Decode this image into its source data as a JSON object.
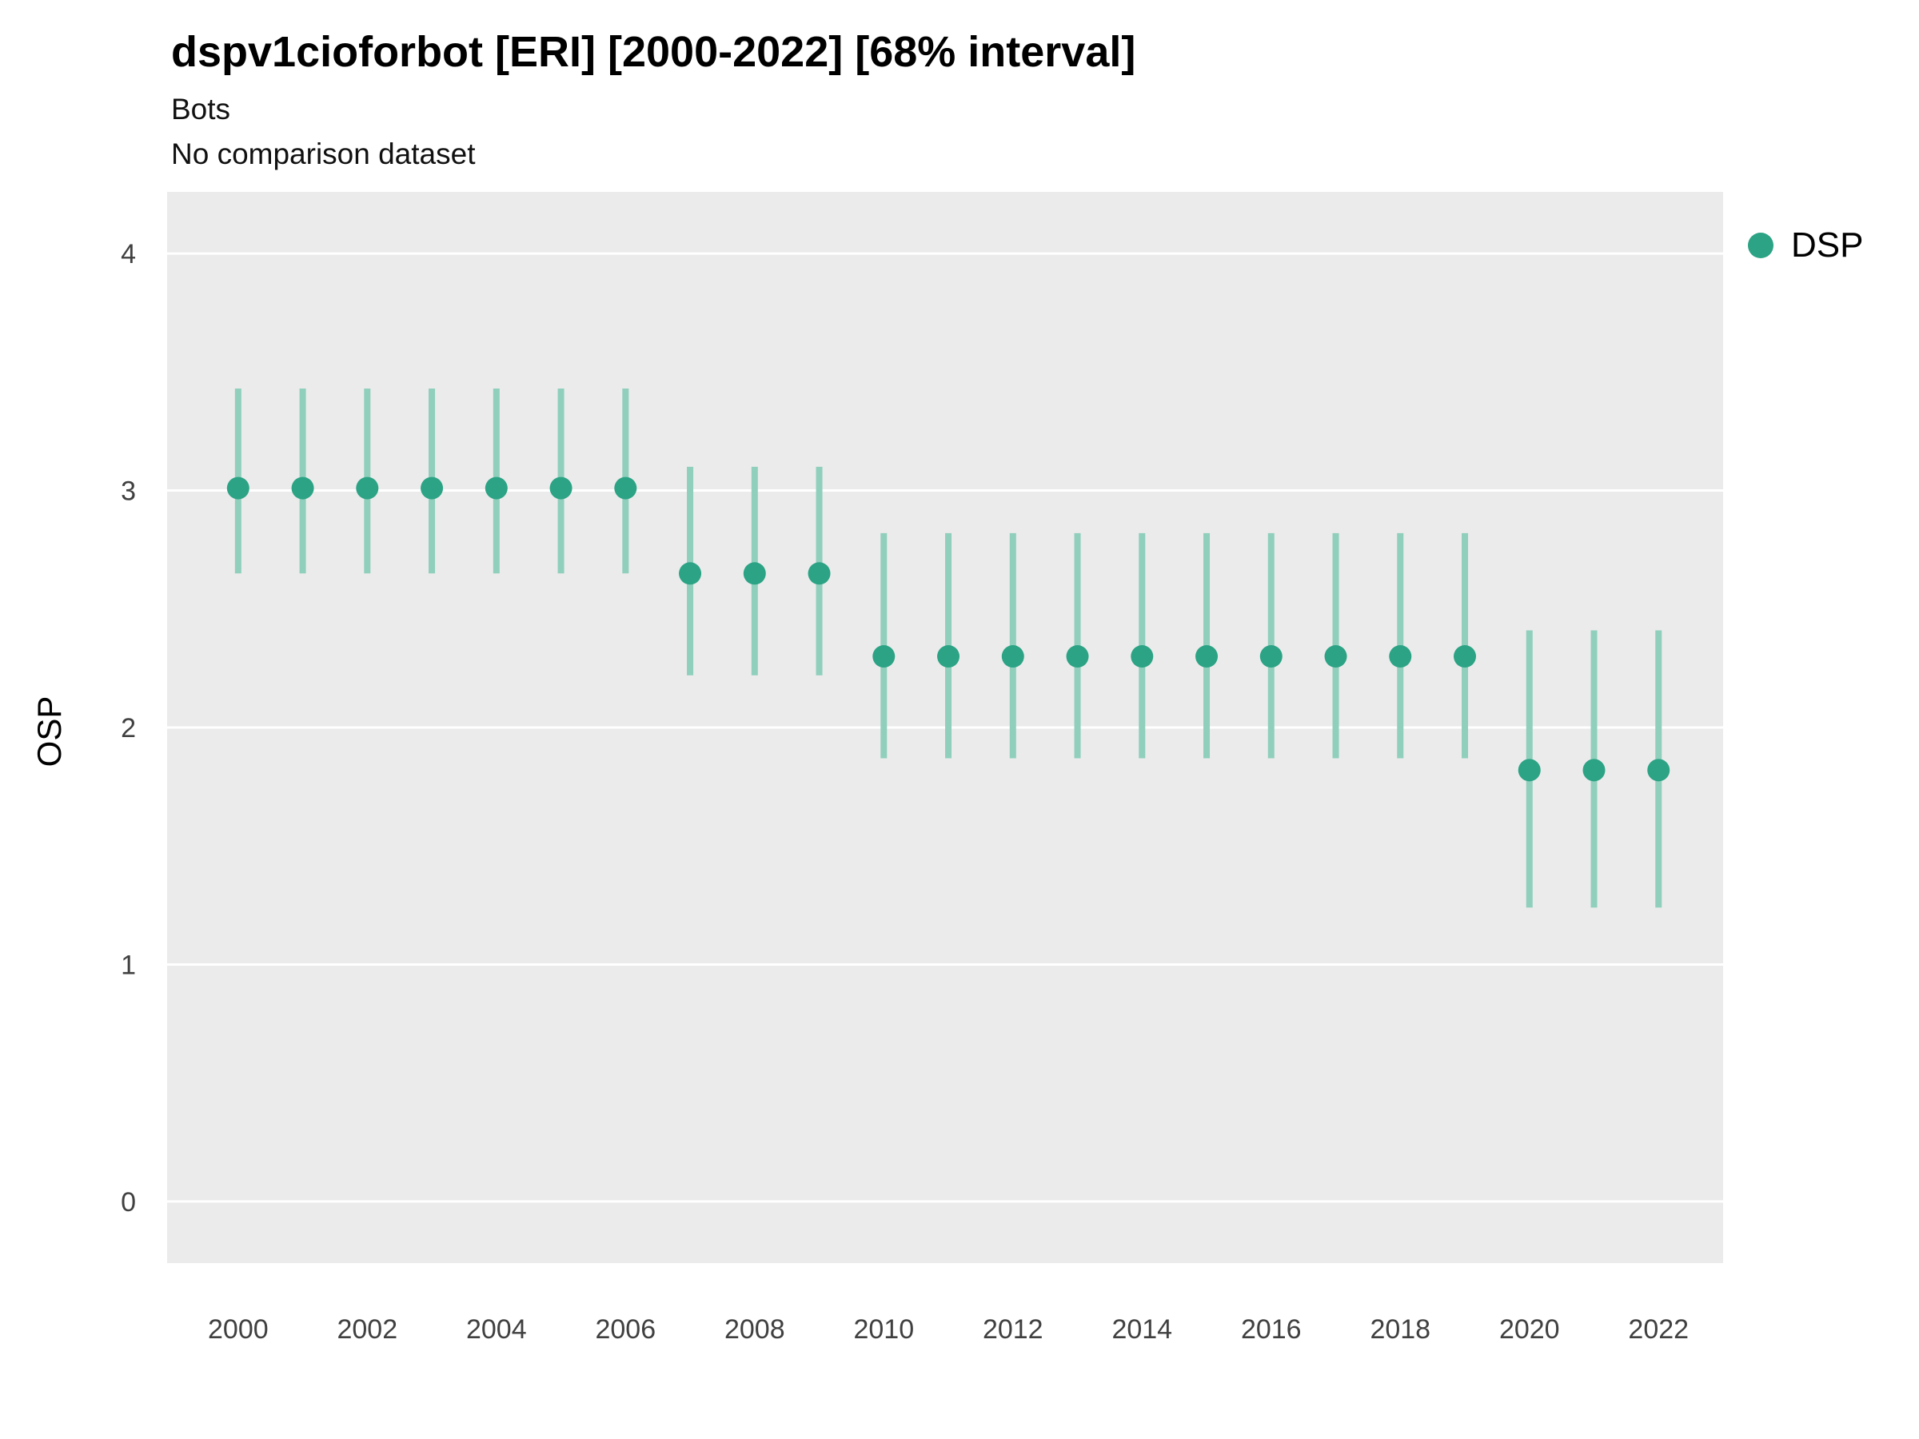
{
  "header": {
    "title": "dspv1cioforbot [ERI] [2000-2022] [68% interval]",
    "subtitle": "Bots",
    "note": "No comparison dataset"
  },
  "legend": {
    "label": "DSP"
  },
  "colors": {
    "panel_bg": "#ebebeb",
    "grid": "#ffffff",
    "tick_text": "#404040",
    "point": "#2ba384",
    "interval": "#8fcfbc"
  },
  "chart_data": {
    "type": "pointrange",
    "title": "dspv1cioforbot [ERI] [2000-2022] [68% interval]",
    "subtitle": "Bots",
    "note": "No comparison dataset",
    "xlabel": "",
    "ylabel": "OSP",
    "interval": "68%",
    "legend_position": "right",
    "grid": "horizontal-major",
    "xlim": [
      1998.9,
      2023.0
    ],
    "ylim": [
      -0.26,
      4.26
    ],
    "x_ticks": [
      2000,
      2002,
      2004,
      2006,
      2008,
      2010,
      2012,
      2014,
      2016,
      2018,
      2020,
      2022
    ],
    "y_ticks": [
      0,
      1,
      2,
      3,
      4
    ],
    "series": [
      {
        "name": "DSP",
        "color": "#2ba384",
        "interval_color": "#8fcfbc",
        "points": [
          {
            "x": 2000,
            "y": 3.01,
            "lo": 2.65,
            "hi": 3.43
          },
          {
            "x": 2001,
            "y": 3.01,
            "lo": 2.65,
            "hi": 3.43
          },
          {
            "x": 2002,
            "y": 3.01,
            "lo": 2.65,
            "hi": 3.43
          },
          {
            "x": 2003,
            "y": 3.01,
            "lo": 2.65,
            "hi": 3.43
          },
          {
            "x": 2004,
            "y": 3.01,
            "lo": 2.65,
            "hi": 3.43
          },
          {
            "x": 2005,
            "y": 3.01,
            "lo": 2.65,
            "hi": 3.43
          },
          {
            "x": 2006,
            "y": 3.01,
            "lo": 2.65,
            "hi": 3.43
          },
          {
            "x": 2007,
            "y": 2.65,
            "lo": 2.22,
            "hi": 3.1
          },
          {
            "x": 2008,
            "y": 2.65,
            "lo": 2.22,
            "hi": 3.1
          },
          {
            "x": 2009,
            "y": 2.65,
            "lo": 2.22,
            "hi": 3.1
          },
          {
            "x": 2010,
            "y": 2.3,
            "lo": 1.87,
            "hi": 2.82
          },
          {
            "x": 2011,
            "y": 2.3,
            "lo": 1.87,
            "hi": 2.82
          },
          {
            "x": 2012,
            "y": 2.3,
            "lo": 1.87,
            "hi": 2.82
          },
          {
            "x": 2013,
            "y": 2.3,
            "lo": 1.87,
            "hi": 2.82
          },
          {
            "x": 2014,
            "y": 2.3,
            "lo": 1.87,
            "hi": 2.82
          },
          {
            "x": 2015,
            "y": 2.3,
            "lo": 1.87,
            "hi": 2.82
          },
          {
            "x": 2016,
            "y": 2.3,
            "lo": 1.87,
            "hi": 2.82
          },
          {
            "x": 2017,
            "y": 2.3,
            "lo": 1.87,
            "hi": 2.82
          },
          {
            "x": 2018,
            "y": 2.3,
            "lo": 1.87,
            "hi": 2.82
          },
          {
            "x": 2019,
            "y": 2.3,
            "lo": 1.87,
            "hi": 2.82
          },
          {
            "x": 2020,
            "y": 1.82,
            "lo": 1.24,
            "hi": 2.41
          },
          {
            "x": 2021,
            "y": 1.82,
            "lo": 1.24,
            "hi": 2.41
          },
          {
            "x": 2022,
            "y": 1.82,
            "lo": 1.24,
            "hi": 2.41
          }
        ]
      }
    ]
  }
}
